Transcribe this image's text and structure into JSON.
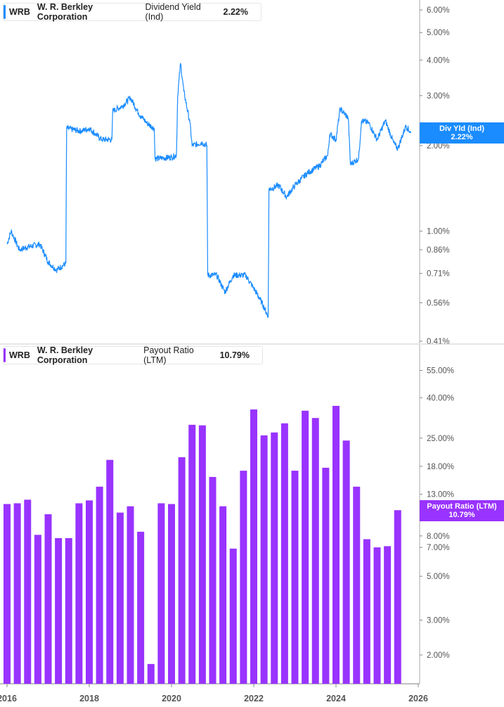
{
  "colors": {
    "yield": "#1a8cff",
    "payout": "#9933ff",
    "axis": "#aaaaaa"
  },
  "top_legend": {
    "ticker": "WRB",
    "company": "W. R. Berkley Corporation",
    "metric": "Dividend Yield (Ind)",
    "value": "2.22%"
  },
  "top_tag": {
    "label": "Div Yld (Ind)",
    "value": "2.22%"
  },
  "bottom_legend": {
    "ticker": "WRB",
    "company": "W. R. Berkley Corporation",
    "metric": "Payout Ratio (LTM)",
    "value": "10.79%"
  },
  "bottom_tag": {
    "label": "Payout Ratio (LTM)",
    "value": "10.79%"
  },
  "chart_data": [
    {
      "type": "line",
      "title": "WRB Dividend Yield (Ind)",
      "yscale": "log",
      "ylim": [
        0.38,
        6.6
      ],
      "xlim": [
        2016,
        2026
      ],
      "yticks": [
        "6.00%",
        "5.00%",
        "4.00%",
        "3.00%",
        "2.00%",
        "1.00%",
        "0.86%",
        "0.71%",
        "0.56%",
        "0.41%"
      ],
      "ytick_values": [
        6,
        5,
        4,
        3,
        2,
        1,
        0.86,
        0.71,
        0.56,
        0.41
      ],
      "points": [
        [
          2016.0,
          0.9
        ],
        [
          2016.1,
          1.0
        ],
        [
          2016.3,
          0.86
        ],
        [
          2016.5,
          0.88
        ],
        [
          2016.8,
          0.9
        ],
        [
          2017.0,
          0.78
        ],
        [
          2017.2,
          0.73
        ],
        [
          2017.43,
          0.77
        ],
        [
          2017.45,
          2.3
        ],
        [
          2017.8,
          2.25
        ],
        [
          2018.0,
          2.3
        ],
        [
          2018.3,
          2.1
        ],
        [
          2018.55,
          2.1
        ],
        [
          2018.57,
          2.65
        ],
        [
          2018.8,
          2.75
        ],
        [
          2019.0,
          2.95
        ],
        [
          2019.2,
          2.6
        ],
        [
          2019.4,
          2.4
        ],
        [
          2019.58,
          2.3
        ],
        [
          2019.6,
          1.8
        ],
        [
          2020.0,
          1.82
        ],
        [
          2020.12,
          1.85
        ],
        [
          2020.15,
          3.0
        ],
        [
          2020.22,
          3.9
        ],
        [
          2020.3,
          3.1
        ],
        [
          2020.45,
          2.4
        ],
        [
          2020.5,
          2.0
        ],
        [
          2020.75,
          2.05
        ],
        [
          2020.86,
          2.0
        ],
        [
          2020.88,
          0.7
        ],
        [
          2021.1,
          0.7
        ],
        [
          2021.3,
          0.61
        ],
        [
          2021.5,
          0.7
        ],
        [
          2021.8,
          0.7
        ],
        [
          2022.0,
          0.63
        ],
        [
          2022.2,
          0.56
        ],
        [
          2022.35,
          0.5
        ],
        [
          2022.37,
          1.4
        ],
        [
          2022.6,
          1.45
        ],
        [
          2022.8,
          1.32
        ],
        [
          2023.0,
          1.45
        ],
        [
          2023.3,
          1.6
        ],
        [
          2023.6,
          1.7
        ],
        [
          2023.8,
          1.85
        ],
        [
          2023.85,
          2.2
        ],
        [
          2024.0,
          2.1
        ],
        [
          2024.1,
          2.7
        ],
        [
          2024.3,
          2.5
        ],
        [
          2024.35,
          1.72
        ],
        [
          2024.55,
          1.8
        ],
        [
          2024.62,
          2.45
        ],
        [
          2024.8,
          2.4
        ],
        [
          2025.0,
          2.1
        ],
        [
          2025.2,
          2.45
        ],
        [
          2025.4,
          2.05
        ],
        [
          2025.5,
          1.95
        ],
        [
          2025.7,
          2.35
        ],
        [
          2025.82,
          2.22
        ]
      ]
    },
    {
      "type": "bar",
      "title": "WRB Payout Ratio (LTM)",
      "yscale": "log",
      "ylim": [
        1.6,
        70
      ],
      "xlim": [
        2016,
        2026
      ],
      "yticks": [
        "55.00%",
        "40.00%",
        "25.00%",
        "18.00%",
        "13.00%",
        "8.00%",
        "7.00%",
        "5.00%",
        "3.00%",
        "2.00%"
      ],
      "ytick_values": [
        55,
        40,
        25,
        18,
        13,
        8,
        7,
        5,
        3,
        2
      ],
      "xticks": [
        "2016",
        "2018",
        "2020",
        "2022",
        "2024",
        "2026"
      ],
      "start_year": 2016.0,
      "period": "quarterly",
      "values": [
        11.6,
        11.7,
        12.2,
        8.1,
        10.3,
        7.8,
        7.8,
        11.7,
        12.1,
        14.2,
        19.4,
        10.5,
        11.3,
        8.4,
        1.8,
        11.7,
        11.6,
        20.0,
        29.2,
        29.0,
        15.9,
        11.3,
        6.9,
        17.1,
        34.9,
        25.8,
        26.7,
        29.7,
        17.1,
        34.4,
        31.6,
        17.7,
        36.4,
        24.3,
        14.2,
        7.7,
        7.0,
        7.1,
        10.8
      ]
    }
  ]
}
